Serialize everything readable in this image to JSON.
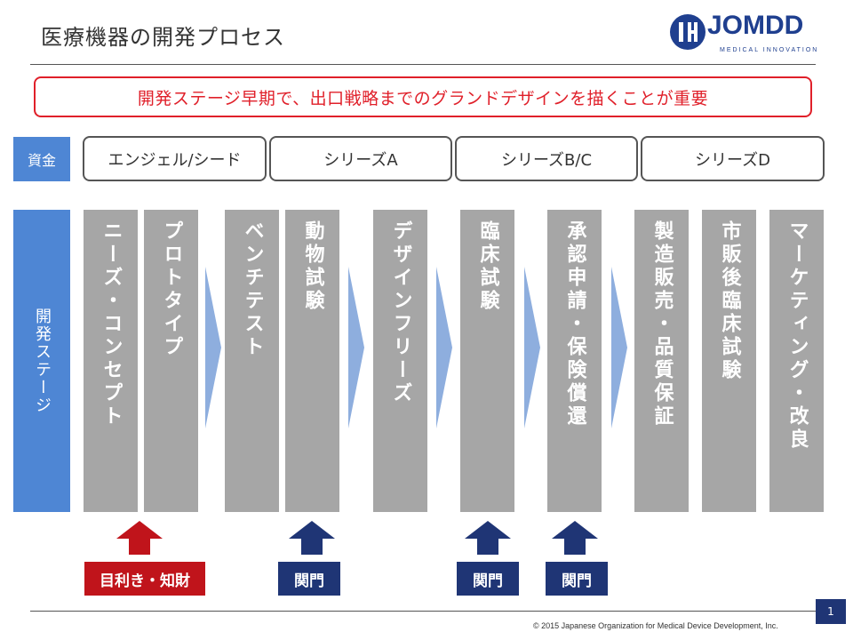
{
  "title": "医療機器の開発プロセス",
  "logo": {
    "word": "JOMDD",
    "tagline": "MEDICAL INNOVATION"
  },
  "banner": "開発ステージ早期で、出口戦略までのグランドデザインを描くことが重要",
  "funding": {
    "label": "資金",
    "rounds": [
      "エンジェル/シード",
      "シリーズA",
      "シリーズB/C",
      "シリーズD"
    ]
  },
  "stages": {
    "label": "開発ステージ",
    "items": [
      "ニーズ・コンセプト",
      "プロトタイプ",
      "ベンチテスト",
      "動物試験",
      "デザインフリーズ",
      "臨床試験",
      "承認申請・保険償還",
      "製造販売・品質保証",
      "市販後臨床試験",
      "マーケティング・改良"
    ]
  },
  "gates": [
    {
      "label": "目利き・知財",
      "color": "#c0141b"
    },
    {
      "label": "関門",
      "color": "#1f3575"
    },
    {
      "label": "関門",
      "color": "#1f3575"
    },
    {
      "label": "関門",
      "color": "#1f3575"
    }
  ],
  "colors": {
    "accent_red": "#e0202a",
    "label_blue": "#4e86d4",
    "navy": "#1f3575",
    "stage_gray": "#a6a6a6",
    "arrow_blue": "#8eaede"
  },
  "footer": {
    "copyright": "© 2015 Japanese Organization for Medical Device Development, Inc.",
    "page": "1"
  }
}
